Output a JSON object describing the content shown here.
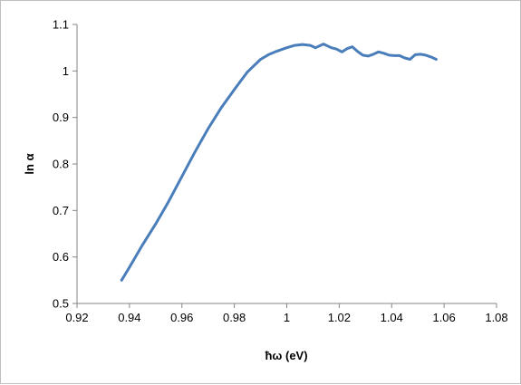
{
  "chart_data": {
    "type": "line",
    "title": "",
    "xlabel": "ħω (eV)",
    "ylabel": "ln α",
    "xlim": [
      0.92,
      1.08
    ],
    "ylim": [
      0.5,
      1.1
    ],
    "xticks": [
      0.92,
      0.94,
      0.96,
      0.98,
      1.0,
      1.02,
      1.04,
      1.06,
      1.08
    ],
    "yticks": [
      0.5,
      0.6,
      0.7,
      0.8,
      0.9,
      1.0,
      1.1
    ],
    "xtick_labels": [
      "0.92",
      "0.94",
      "0.96",
      "0.98",
      "1",
      "1.02",
      "1.04",
      "1.06",
      "1.08"
    ],
    "ytick_labels": [
      "0.5",
      "0.6",
      "0.7",
      "0.8",
      "0.9",
      "1",
      "1.1"
    ],
    "grid": false,
    "legend": "none",
    "series": [
      {
        "color": "#4a7ebb",
        "x": [
          0.937,
          0.94,
          0.945,
          0.95,
          0.955,
          0.96,
          0.965,
          0.97,
          0.975,
          0.98,
          0.985,
          0.99,
          0.993,
          0.996,
          0.998,
          1.0,
          1.003,
          1.006,
          1.009,
          1.011,
          1.014,
          1.017,
          1.019,
          1.021,
          1.023,
          1.025,
          1.027,
          1.029,
          1.031,
          1.033,
          1.035,
          1.037,
          1.039,
          1.041,
          1.043,
          1.045,
          1.047,
          1.049,
          1.051,
          1.053,
          1.055,
          1.057
        ],
        "y": [
          0.55,
          0.578,
          0.626,
          0.671,
          0.72,
          0.773,
          0.826,
          0.876,
          0.921,
          0.96,
          0.998,
          1.025,
          1.035,
          1.042,
          1.046,
          1.05,
          1.055,
          1.057,
          1.055,
          1.05,
          1.058,
          1.05,
          1.047,
          1.041,
          1.048,
          1.052,
          1.042,
          1.034,
          1.032,
          1.036,
          1.041,
          1.038,
          1.034,
          1.033,
          1.033,
          1.028,
          1.025,
          1.035,
          1.036,
          1.034,
          1.03,
          1.025
        ]
      }
    ]
  }
}
